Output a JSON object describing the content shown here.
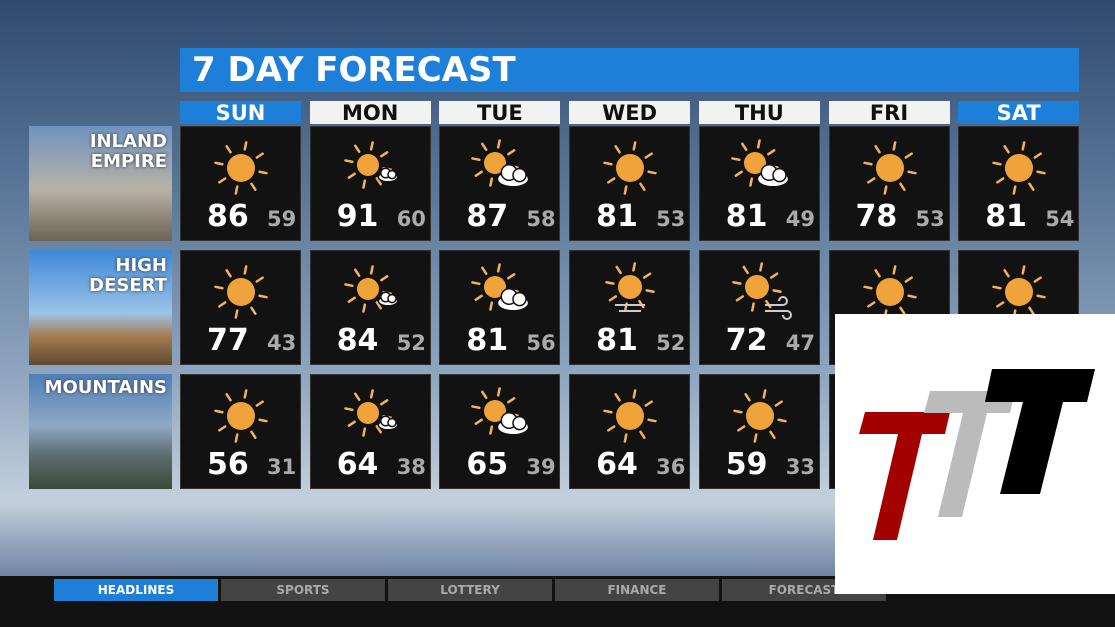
{
  "title": "7 DAY FORECAST",
  "days": [
    "SUN",
    "MON",
    "TUE",
    "WED",
    "THU",
    "FRI",
    "SAT"
  ],
  "regions": [
    {
      "name": "INLAND\nEMPIRE",
      "forecast": [
        {
          "icon": "sun",
          "hi": "86",
          "lo": "59"
        },
        {
          "icon": "sun-small-cloud",
          "hi": "91",
          "lo": "60"
        },
        {
          "icon": "partly-cloudy",
          "hi": "87",
          "lo": "58"
        },
        {
          "icon": "sun",
          "hi": "81",
          "lo": "53"
        },
        {
          "icon": "partly-cloudy",
          "hi": "81",
          "lo": "49"
        },
        {
          "icon": "sun",
          "hi": "78",
          "lo": "53"
        },
        {
          "icon": "sun",
          "hi": "81",
          "lo": "54"
        }
      ]
    },
    {
      "name": "HIGH\nDESERT",
      "forecast": [
        {
          "icon": "sun",
          "hi": "77",
          "lo": "43"
        },
        {
          "icon": "sun-small-cloud",
          "hi": "84",
          "lo": "52"
        },
        {
          "icon": "partly-cloudy",
          "hi": "81",
          "lo": "56"
        },
        {
          "icon": "sun-haze",
          "hi": "81",
          "lo": "52"
        },
        {
          "icon": "sun-wind",
          "hi": "72",
          "lo": "47"
        },
        {
          "icon": "sun",
          "hi": "",
          "lo": ""
        },
        {
          "icon": "sun",
          "hi": "",
          "lo": ""
        }
      ]
    },
    {
      "name": "MOUNTAINS",
      "forecast": [
        {
          "icon": "sun",
          "hi": "56",
          "lo": "31"
        },
        {
          "icon": "sun-small-cloud",
          "hi": "64",
          "lo": "38"
        },
        {
          "icon": "partly-cloudy",
          "hi": "65",
          "lo": "39"
        },
        {
          "icon": "sun",
          "hi": "64",
          "lo": "36"
        },
        {
          "icon": "sun",
          "hi": "59",
          "lo": "33"
        },
        {
          "icon": "sun",
          "hi": "",
          "lo": ""
        },
        {
          "icon": "sun",
          "hi": "",
          "lo": ""
        }
      ]
    }
  ],
  "ticker": {
    "tabs": [
      "HEADLINES",
      "SPORTS",
      "LOTTERY",
      "FINANCE",
      "FORECAST"
    ],
    "active": 0
  },
  "colors": {
    "accent": "#1e7fd8",
    "sun": "#f0a33a"
  },
  "logo": {
    "text": "TTT",
    "colors": [
      "#a30000",
      "#bbbbbb",
      "#000000"
    ]
  }
}
